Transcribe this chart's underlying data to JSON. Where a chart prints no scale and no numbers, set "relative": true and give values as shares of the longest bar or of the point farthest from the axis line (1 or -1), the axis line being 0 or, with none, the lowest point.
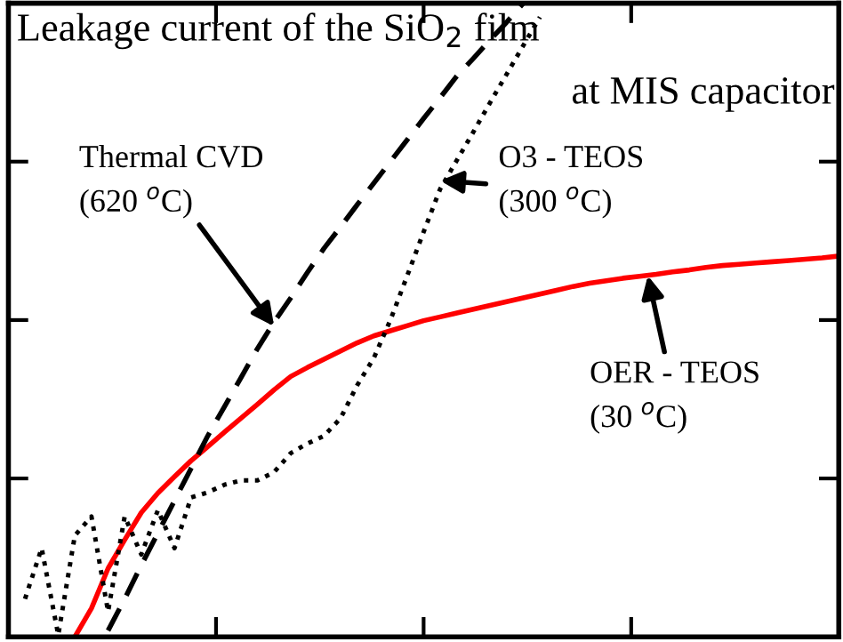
{
  "chart_data": {
    "type": "line",
    "relative": true,
    "grid": false,
    "legend": false,
    "marker": "none",
    "categories": [
      null,
      null,
      null,
      null,
      null,
      null,
      null,
      null,
      null,
      null,
      null,
      null,
      null,
      null,
      null,
      null,
      null,
      null,
      null,
      null,
      null,
      null,
      null,
      null,
      null,
      null,
      null,
      null,
      null,
      null,
      null,
      null,
      null,
      null,
      null,
      null,
      null,
      null,
      null,
      null,
      null,
      null,
      null,
      null,
      null,
      null,
      null,
      null,
      null,
      null,
      null
    ],
    "series": [
      {
        "color": "#ff0000",
        "line_style": "solid",
        "values": [
          null,
          null,
          null,
          null,
          0,
          0.045,
          0.108,
          0.153,
          0.196,
          0.227,
          0.253,
          0.278,
          0.3,
          0.323,
          0.345,
          0.367,
          0.39,
          0.411,
          0.425,
          0.438,
          0.451,
          0.464,
          0.475,
          0.483,
          0.491,
          0.499,
          0.505,
          0.511,
          0.517,
          0.523,
          0.529,
          0.535,
          0.541,
          0.547,
          0.553,
          0.558,
          0.562,
          0.566,
          0.569,
          0.572,
          0.576,
          0.579,
          0.583,
          0.586,
          0.588,
          0.59,
          0.592,
          0.594,
          0.596,
          0.598,
          0.601
        ]
      },
      {
        "color": "#000000",
        "line_style": "dashed",
        "values": [
          null,
          null,
          null,
          null,
          null,
          null,
          0.01,
          0.06,
          0.113,
          0.164,
          0.215,
          0.266,
          0.317,
          0.363,
          0.409,
          0.455,
          0.497,
          0.535,
          0.575,
          0.613,
          0.647,
          0.682,
          0.716,
          0.75,
          0.784,
          0.818,
          0.851,
          0.885,
          0.913,
          0.942,
          0.97,
          1.0,
          null,
          null,
          null,
          null,
          null,
          null,
          null,
          null,
          null,
          null,
          null,
          null,
          null,
          null,
          null,
          null,
          null,
          null,
          null
        ]
      },
      {
        "color": "#000000",
        "line_style": "dotted",
        "values": [
          null,
          0.06,
          0.14,
          0.003,
          0.16,
          0.19,
          0.04,
          0.19,
          0.13,
          0.2,
          0.14,
          0.22,
          0.228,
          0.24,
          0.247,
          0.247,
          0.26,
          0.29,
          0.305,
          0.317,
          0.345,
          0.397,
          0.44,
          0.5,
          0.569,
          0.639,
          0.707,
          0.752,
          0.797,
          0.843,
          0.888,
          0.933,
          0.978,
          null,
          null,
          null,
          null,
          null,
          null,
          null,
          null,
          null,
          null,
          null,
          null,
          null,
          null,
          null,
          null,
          null,
          null
        ]
      }
    ],
    "annotations": [
      "Leakage current of the SiO$_{2}$ film",
      "at MIS capacitor",
      "Thermal CVD\n(620 $^{o}$C)",
      "O3 - TEOS\n(300 $^{o}$C)",
      "OER - TEOS\n(30 $^{o}$C)"
    ]
  }
}
